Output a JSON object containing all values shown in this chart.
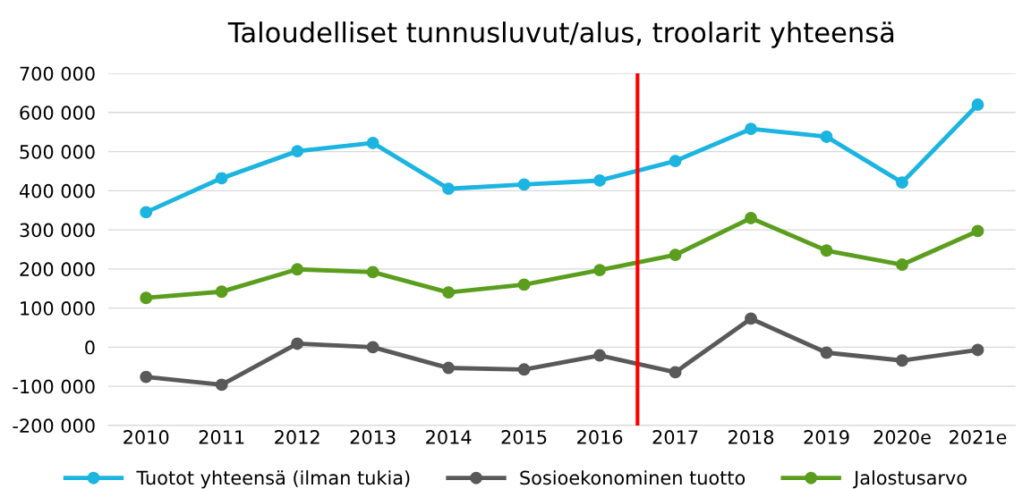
{
  "chart_data": {
    "type": "line",
    "title": "Taloudelliset tunnusluvut/alus, troolarit yhteensä",
    "x": [
      2010,
      2011,
      2012,
      2013,
      2014,
      2015,
      2016,
      2017,
      2018,
      2019,
      2020,
      2021
    ],
    "xlim": [
      2009.5,
      2021.5
    ],
    "xticks": [
      2010,
      2011,
      2012,
      2013,
      2014,
      2015,
      2016,
      2017,
      2018,
      2019,
      {
        "value": 2020,
        "label": "2020e"
      },
      {
        "value": 2021,
        "label": "2021e"
      }
    ],
    "ylim": [
      -200000,
      700000
    ],
    "yticks": [
      {
        "value": -200000,
        "label": "-200 000"
      },
      {
        "value": -100000,
        "label": "-100 000"
      },
      {
        "value": 0,
        "label": "0"
      },
      {
        "value": 100000,
        "label": "100 000"
      },
      {
        "value": 200000,
        "label": "200 000"
      },
      {
        "value": 300000,
        "label": "300 000"
      },
      {
        "value": 400000,
        "label": "400 000"
      },
      {
        "value": 500000,
        "label": "500 000"
      },
      {
        "value": 600000,
        "label": "600 000"
      },
      {
        "value": 700000,
        "label": "700 000"
      }
    ],
    "series": [
      {
        "name": "Tuotot yhteensä (ilman tukia)",
        "color": "#1cb4e0",
        "values": [
          345000,
          432000,
          501000,
          522000,
          405000,
          416000,
          426000,
          476000,
          558000,
          538000,
          421000,
          620000
        ]
      },
      {
        "name": "Sosioekonominen tuotto",
        "color": "#595959",
        "values": [
          -76000,
          -96000,
          9000,
          0,
          -53000,
          -57000,
          -21000,
          -64000,
          73000,
          -14000,
          -34000,
          -7000
        ]
      },
      {
        "name": "Jalostusarvo",
        "color": "#5b9e1e",
        "values": [
          126000,
          142000,
          199000,
          192000,
          140000,
          160000,
          197000,
          236000,
          330000,
          247000,
          211000,
          297000
        ]
      }
    ],
    "ref_lines": [
      {
        "axis": "x",
        "value": 2016.5,
        "color": "#ff0000"
      }
    ],
    "grid": "y",
    "legend": "bottom",
    "marker": "circle",
    "line_style": "solid"
  }
}
